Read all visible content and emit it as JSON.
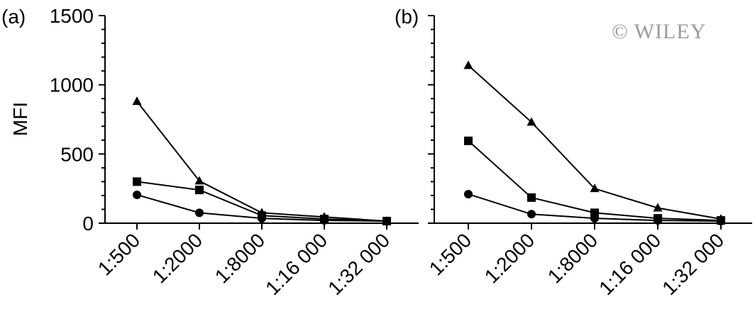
{
  "watermark": "© WILEY",
  "chart_data": [
    {
      "type": "line",
      "panel_label": "(a)",
      "ylabel": "MFI",
      "ylim": [
        0,
        1500
      ],
      "yticks": [
        "0",
        "500",
        "1000",
        "1500"
      ],
      "categories": [
        "1:500",
        "1:2000",
        "1:8000",
        "1:16 000",
        "1:32 000"
      ],
      "series": [
        {
          "marker": "triangle",
          "values": [
            880,
            305,
            75,
            45,
            15
          ]
        },
        {
          "marker": "square",
          "values": [
            300,
            240,
            55,
            30,
            15
          ]
        },
        {
          "marker": "circle",
          "values": [
            205,
            75,
            35,
            20,
            15
          ]
        }
      ],
      "grid": false
    },
    {
      "type": "line",
      "panel_label": "(b)",
      "ylim": [
        0,
        1500
      ],
      "yticks": [],
      "categories": [
        "1:500",
        "1:2000",
        "1:8000",
        "1:16 000",
        "1:32 000"
      ],
      "series": [
        {
          "marker": "triangle",
          "values": [
            1140,
            730,
            250,
            110,
            30
          ]
        },
        {
          "marker": "square",
          "values": [
            595,
            185,
            75,
            35,
            20
          ]
        },
        {
          "marker": "circle",
          "values": [
            210,
            65,
            35,
            20,
            15
          ]
        }
      ],
      "grid": false
    }
  ]
}
